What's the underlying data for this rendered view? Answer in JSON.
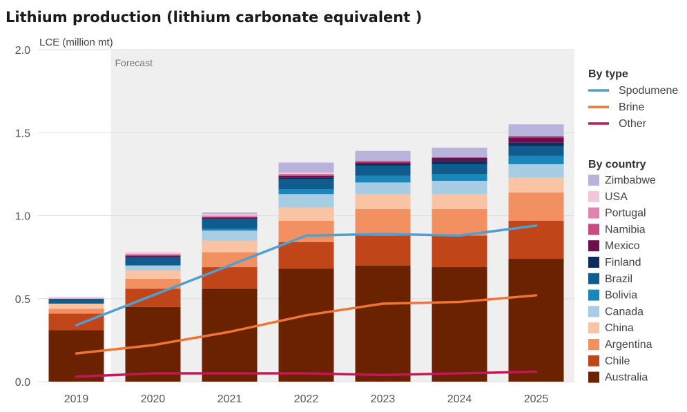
{
  "chart_data": {
    "type": "bar",
    "title": "Lithium production (lithium carbonate equivalent )",
    "ylabel": "LCE (million mt)",
    "forecast_label": "Forecast",
    "ylim": [
      0,
      2.0
    ],
    "yticks": [
      "0.0",
      "0.5",
      "1.0",
      "1.5",
      "2.0"
    ],
    "categories": [
      "2019",
      "2020",
      "2021",
      "2022",
      "2023",
      "2024",
      "2025"
    ],
    "legend_country_title": "By country",
    "legend_type_title": "By type",
    "country_series": [
      {
        "name": "Australia",
        "color": "#6b2200",
        "values": [
          0.31,
          0.45,
          0.56,
          0.68,
          0.7,
          0.69,
          0.74
        ]
      },
      {
        "name": "Chile",
        "color": "#c0461a",
        "values": [
          0.1,
          0.11,
          0.13,
          0.16,
          0.18,
          0.19,
          0.23
        ]
      },
      {
        "name": "Argentina",
        "color": "#f29062",
        "values": [
          0.03,
          0.06,
          0.09,
          0.13,
          0.16,
          0.16,
          0.17
        ]
      },
      {
        "name": "China",
        "color": "#f9c3a6",
        "values": [
          0.03,
          0.05,
          0.07,
          0.08,
          0.09,
          0.09,
          0.09
        ]
      },
      {
        "name": "Canada",
        "color": "#a6cde3",
        "values": [
          0.0,
          0.03,
          0.06,
          0.08,
          0.07,
          0.08,
          0.08
        ]
      },
      {
        "name": "Bolivia",
        "color": "#1b86ba",
        "values": [
          0.0,
          0.0,
          0.01,
          0.03,
          0.04,
          0.04,
          0.05
        ]
      },
      {
        "name": "Brazil",
        "color": "#0e5d8e",
        "values": [
          0.03,
          0.05,
          0.06,
          0.06,
          0.06,
          0.06,
          0.06
        ]
      },
      {
        "name": "Finland",
        "color": "#0b2e5c",
        "values": [
          0.0,
          0.0,
          0.0,
          0.01,
          0.01,
          0.02,
          0.02
        ]
      },
      {
        "name": "Mexico",
        "color": "#6b0f4e",
        "values": [
          0.0,
          0.01,
          0.01,
          0.01,
          0.01,
          0.02,
          0.03
        ]
      },
      {
        "name": "Namibia",
        "color": "#c94b82",
        "values": [
          0.0,
          0.0,
          0.0,
          0.01,
          0.01,
          0.0,
          0.01
        ]
      },
      {
        "name": "Portugal",
        "color": "#e084ad",
        "values": [
          0.0,
          0.01,
          0.01,
          0.0,
          0.0,
          0.0,
          0.0
        ]
      },
      {
        "name": "USA",
        "color": "#f4c6d9",
        "values": [
          0.01,
          0.01,
          0.01,
          0.01,
          0.0,
          0.0,
          0.0
        ]
      },
      {
        "name": "Zimbabwe",
        "color": "#b9b3dc",
        "values": [
          0.0,
          0.0,
          0.01,
          0.06,
          0.06,
          0.06,
          0.07
        ]
      }
    ],
    "type_series": [
      {
        "name": "Spodumene",
        "color": "#4f9fd0",
        "values": [
          0.34,
          0.52,
          0.7,
          0.88,
          0.89,
          0.88,
          0.94
        ]
      },
      {
        "name": "Brine",
        "color": "#f07535",
        "values": [
          0.17,
          0.22,
          0.3,
          0.4,
          0.47,
          0.48,
          0.52
        ]
      },
      {
        "name": "Other",
        "color": "#c2185b",
        "values": [
          0.03,
          0.05,
          0.05,
          0.05,
          0.04,
          0.05,
          0.06
        ]
      }
    ]
  }
}
